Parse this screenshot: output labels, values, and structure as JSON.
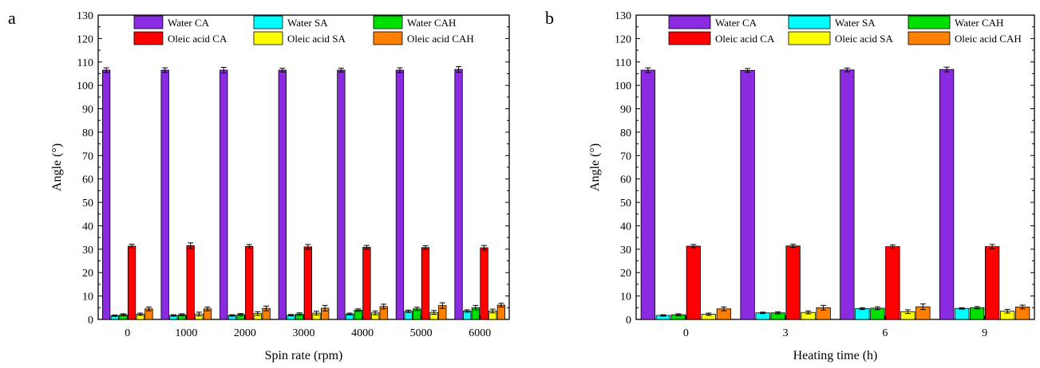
{
  "panels": [
    {
      "letter": "a",
      "chart_data": {
        "type": "bar",
        "xlabel": "Spin rate (rpm)",
        "ylabel": "Angle (°)",
        "ylim": [
          0,
          130
        ],
        "yticks": [
          "0",
          "10",
          "20",
          "30",
          "40",
          "50",
          "60",
          "70",
          "80",
          "90",
          "100",
          "110",
          "120",
          "130"
        ],
        "categories": [
          "0",
          "1000",
          "2000",
          "3000",
          "4000",
          "5000",
          "6000"
        ],
        "legend_placement": "top",
        "series": [
          {
            "name": "Water CA",
            "color": "#8a2be2",
            "values": [
              106.5,
              106.5,
              106.5,
              106.5,
              106.5,
              106.5,
              106.8
            ],
            "errors": [
              1.0,
              1.0,
              1.2,
              0.8,
              0.8,
              1.0,
              1.2
            ]
          },
          {
            "name": "Water SA",
            "color": "#00ffff",
            "values": [
              1.6,
              1.7,
              1.7,
              1.8,
              2.3,
              3.5,
              3.6
            ],
            "errors": [
              0.3,
              0.3,
              0.3,
              0.3,
              0.4,
              0.5,
              0.5
            ]
          },
          {
            "name": "Water CAH",
            "color": "#00e000",
            "values": [
              2.0,
              2.0,
              2.1,
              2.3,
              4.0,
              4.5,
              5.0
            ],
            "errors": [
              0.4,
              0.4,
              0.4,
              0.5,
              0.5,
              0.7,
              1.0
            ]
          },
          {
            "name": "Oleic acid CA",
            "color": "#ff0000",
            "values": [
              31.3,
              31.5,
              31.2,
              31.0,
              30.8,
              30.7,
              30.6
            ],
            "errors": [
              0.8,
              1.2,
              0.8,
              1.0,
              0.8,
              0.8,
              1.0
            ]
          },
          {
            "name": "Oleic acid SA",
            "color": "#ffff00",
            "values": [
              2.2,
              2.3,
              2.5,
              2.7,
              2.8,
              3.0,
              3.6
            ],
            "errors": [
              0.5,
              0.8,
              0.8,
              0.8,
              0.8,
              0.8,
              0.8
            ]
          },
          {
            "name": "Oleic acid CAH",
            "color": "#ff8000",
            "values": [
              4.5,
              4.5,
              4.7,
              4.8,
              5.5,
              5.9,
              6.1
            ],
            "errors": [
              0.8,
              0.8,
              1.0,
              1.2,
              1.0,
              1.2,
              0.8
            ]
          }
        ]
      }
    },
    {
      "letter": "b",
      "chart_data": {
        "type": "bar",
        "xlabel": "Heating time (h)",
        "ylabel": "Angle (°)",
        "ylim": [
          0,
          130
        ],
        "yticks": [
          "0",
          "10",
          "20",
          "30",
          "40",
          "50",
          "60",
          "70",
          "80",
          "90",
          "100",
          "110",
          "120",
          "130"
        ],
        "categories": [
          "0",
          "3",
          "6",
          "9"
        ],
        "legend_placement": "top",
        "series": [
          {
            "name": "Water CA",
            "color": "#8a2be2",
            "values": [
              106.5,
              106.4,
              106.6,
              106.8
            ],
            "errors": [
              1.0,
              0.8,
              0.8,
              1.0
            ]
          },
          {
            "name": "Water SA",
            "color": "#00ffff",
            "values": [
              1.7,
              2.8,
              4.6,
              4.7
            ],
            "errors": [
              0.3,
              0.3,
              0.4,
              0.3
            ]
          },
          {
            "name": "Water CAH",
            "color": "#00e000",
            "values": [
              2.0,
              2.8,
              4.8,
              5.0
            ],
            "errors": [
              0.4,
              0.4,
              0.6,
              0.5
            ]
          },
          {
            "name": "Oleic acid CA",
            "color": "#ff0000",
            "values": [
              31.3,
              31.4,
              31.1,
              31.1
            ],
            "errors": [
              0.7,
              0.7,
              0.7,
              0.9
            ]
          },
          {
            "name": "Oleic acid SA",
            "color": "#ffff00",
            "values": [
              2.2,
              3.0,
              3.3,
              3.5
            ],
            "errors": [
              0.5,
              0.6,
              0.8,
              0.8
            ]
          },
          {
            "name": "Oleic acid CAH",
            "color": "#ff8000",
            "values": [
              4.5,
              5.0,
              5.4,
              5.3
            ],
            "errors": [
              0.8,
              1.0,
              1.2,
              0.8
            ]
          }
        ]
      }
    }
  ]
}
